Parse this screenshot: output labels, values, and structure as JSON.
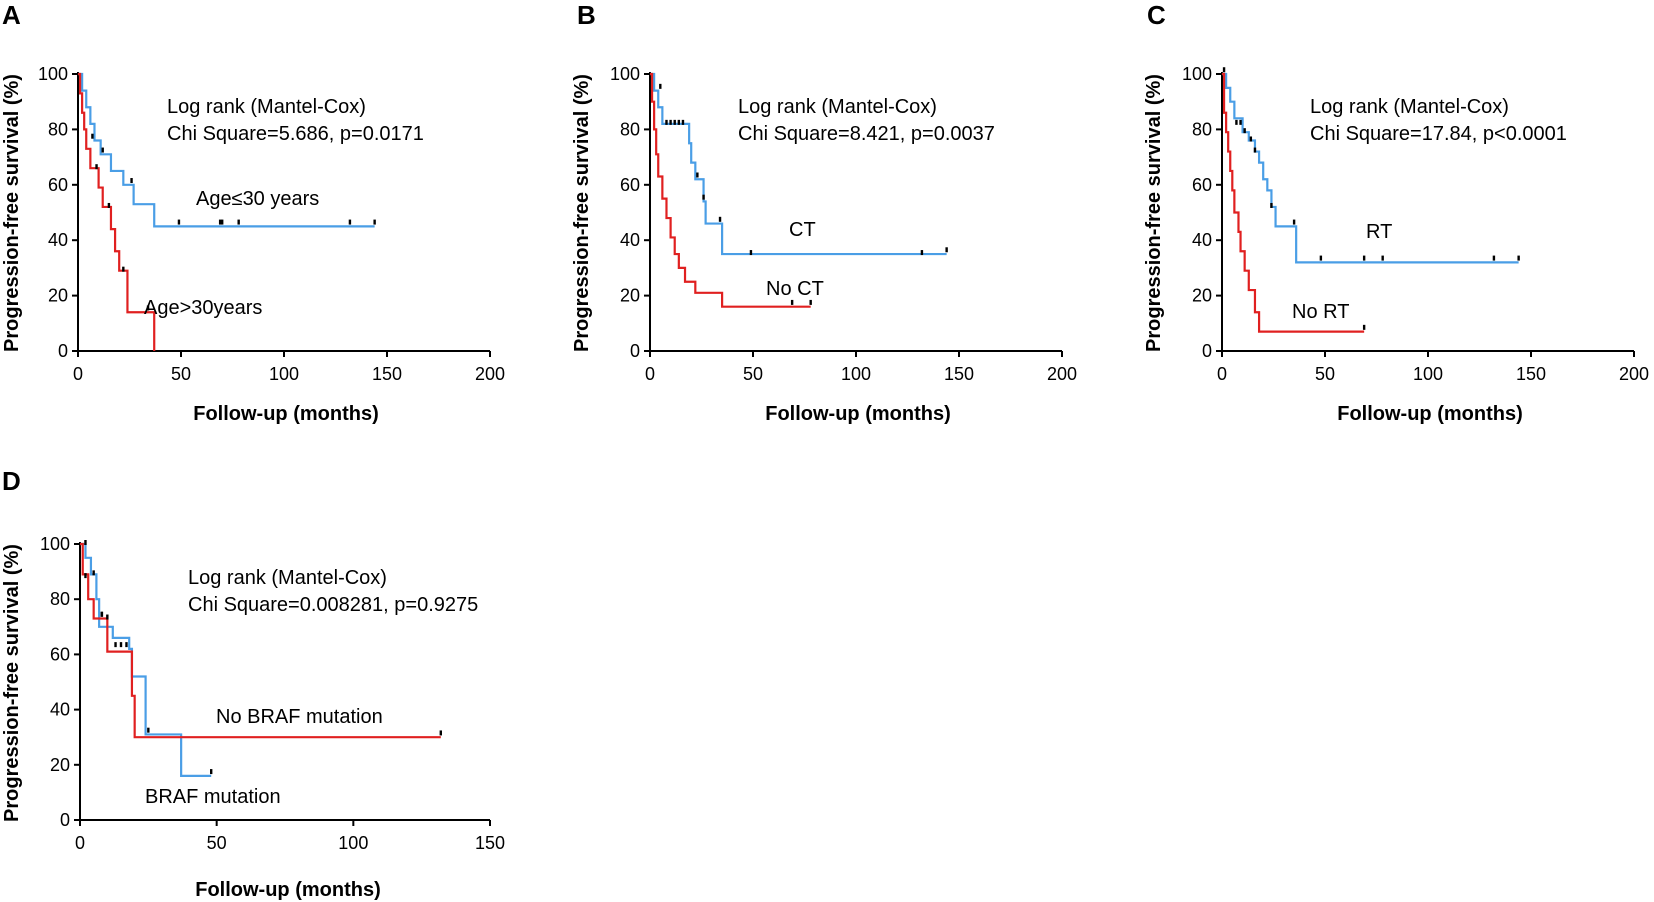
{
  "chart_data": [
    {
      "panel": "A",
      "type": "line",
      "subtype": "kaplan-meier",
      "xlabel": "Follow-up (months)",
      "ylabel": "Progression-free survival (%)",
      "xlim": [
        0,
        200
      ],
      "ylim": [
        0,
        100
      ],
      "xticks": [
        0,
        50,
        100,
        150,
        200
      ],
      "yticks": [
        0,
        20,
        40,
        60,
        80,
        100
      ],
      "stat_lines": [
        "Log rank (Mantel-Cox)",
        "Chi Square=5.686, p=0.0171"
      ],
      "series": [
        {
          "name": "Age≤30 years",
          "color": "#4a9ee6",
          "steps": [
            [
              0,
              100
            ],
            [
              2,
              94
            ],
            [
              4,
              88
            ],
            [
              6,
              82
            ],
            [
              8,
              76
            ],
            [
              11,
              71
            ],
            [
              16,
              65
            ],
            [
              22,
              60
            ],
            [
              27,
              53
            ],
            [
              37,
              45
            ],
            [
              144,
              45
            ]
          ],
          "censor": [
            [
              7,
              77
            ],
            [
              12,
              72
            ],
            [
              26,
              61
            ],
            [
              49,
              46
            ],
            [
              69,
              46
            ],
            [
              70,
              46
            ],
            [
              78,
              46
            ],
            [
              132,
              46
            ],
            [
              144,
              46
            ]
          ]
        },
        {
          "name": "Age>30years",
          "color": "#e02020",
          "steps": [
            [
              0,
              100
            ],
            [
              1,
              93
            ],
            [
              2,
              86
            ],
            [
              3,
              80
            ],
            [
              4,
              73
            ],
            [
              6,
              66
            ],
            [
              10,
              59
            ],
            [
              12,
              52
            ],
            [
              16,
              44
            ],
            [
              18,
              36
            ],
            [
              20,
              29
            ],
            [
              24,
              14
            ],
            [
              37,
              0
            ]
          ],
          "censor": [
            [
              9,
              66
            ],
            [
              15,
              52
            ],
            [
              22,
              29
            ],
            [
              34,
              15
            ]
          ]
        }
      ]
    },
    {
      "panel": "B",
      "type": "line",
      "subtype": "kaplan-meier",
      "xlabel": "Follow-up (months)",
      "ylabel": "Progression-free survival (%)",
      "xlim": [
        0,
        200
      ],
      "ylim": [
        0,
        100
      ],
      "xticks": [
        0,
        50,
        100,
        150,
        200
      ],
      "yticks": [
        0,
        20,
        40,
        60,
        80,
        100
      ],
      "stat_lines": [
        "Log rank (Mantel-Cox)",
        "Chi Square=8.421, p=0.0037"
      ],
      "series": [
        {
          "name": "CT",
          "color": "#4a9ee6",
          "steps": [
            [
              0,
              100
            ],
            [
              2,
              94
            ],
            [
              4,
              88
            ],
            [
              6,
              82
            ],
            [
              19,
              75
            ],
            [
              20,
              68
            ],
            [
              22,
              62
            ],
            [
              26,
              54
            ],
            [
              27,
              46
            ],
            [
              35,
              35
            ],
            [
              144,
              35
            ]
          ],
          "censor": [
            [
              5,
              95
            ],
            [
              8,
              82
            ],
            [
              10,
              82
            ],
            [
              12,
              82
            ],
            [
              14,
              82
            ],
            [
              16,
              82
            ],
            [
              23,
              63
            ],
            [
              26,
              55
            ],
            [
              34,
              47
            ],
            [
              49,
              35
            ],
            [
              132,
              35
            ],
            [
              144,
              36
            ]
          ]
        },
        {
          "name": "No CT",
          "color": "#e02020",
          "steps": [
            [
              0,
              100
            ],
            [
              1,
              90
            ],
            [
              2,
              80
            ],
            [
              3,
              71
            ],
            [
              4,
              63
            ],
            [
              6,
              55
            ],
            [
              8,
              48
            ],
            [
              10,
              41
            ],
            [
              12,
              35
            ],
            [
              14,
              30
            ],
            [
              17,
              25
            ],
            [
              22,
              21
            ],
            [
              35,
              16
            ],
            [
              78,
              16
            ]
          ],
          "censor": [
            [
              69,
              17
            ],
            [
              78,
              17
            ]
          ]
        }
      ]
    },
    {
      "panel": "C",
      "type": "line",
      "subtype": "kaplan-meier",
      "xlabel": "Follow-up (months)",
      "ylabel": "Progression-free survival (%)",
      "xlim": [
        0,
        200
      ],
      "ylim": [
        0,
        100
      ],
      "xticks": [
        0,
        50,
        100,
        150,
        200
      ],
      "yticks": [
        0,
        20,
        40,
        60,
        80,
        100
      ],
      "stat_lines": [
        "Log rank (Mantel-Cox)",
        "Chi Square=17.84, p<0.0001"
      ],
      "series": [
        {
          "name": "RT",
          "color": "#4a9ee6",
          "steps": [
            [
              0,
              100
            ],
            [
              2,
              95
            ],
            [
              4,
              90
            ],
            [
              6,
              84
            ],
            [
              10,
              79
            ],
            [
              13,
              76
            ],
            [
              16,
              72
            ],
            [
              18,
              68
            ],
            [
              20,
              62
            ],
            [
              22,
              58
            ],
            [
              24,
              52
            ],
            [
              26,
              45
            ],
            [
              36,
              32
            ],
            [
              144,
              32
            ]
          ],
          "censor": [
            [
              1,
              101
            ],
            [
              7,
              82
            ],
            [
              9,
              82
            ],
            [
              11,
              79
            ],
            [
              14,
              76
            ],
            [
              16,
              72
            ],
            [
              24,
              52
            ],
            [
              35,
              46
            ],
            [
              48,
              33
            ],
            [
              69,
              33
            ],
            [
              78,
              33
            ],
            [
              132,
              33
            ],
            [
              144,
              33
            ]
          ]
        },
        {
          "name": "No RT",
          "color": "#e02020",
          "steps": [
            [
              0,
              100
            ],
            [
              1,
              86
            ],
            [
              2,
              79
            ],
            [
              3,
              72
            ],
            [
              4,
              65
            ],
            [
              5,
              58
            ],
            [
              6,
              50
            ],
            [
              8,
              43
            ],
            [
              9,
              36
            ],
            [
              11,
              29
            ],
            [
              13,
              22
            ],
            [
              16,
              14
            ],
            [
              18,
              7
            ],
            [
              69,
              7
            ]
          ],
          "censor": [
            [
              69,
              8
            ]
          ]
        }
      ]
    },
    {
      "panel": "D",
      "type": "line",
      "subtype": "kaplan-meier",
      "xlabel": "Follow-up (months)",
      "ylabel": "Progression-free survival (%)",
      "xlim": [
        0,
        150
      ],
      "ylim": [
        0,
        100
      ],
      "xticks": [
        0,
        50,
        100,
        150
      ],
      "yticks": [
        0,
        20,
        40,
        60,
        80,
        100
      ],
      "stat_lines": [
        "Log rank (Mantel-Cox)",
        "Chi Square=0.008281, p=0.9275"
      ],
      "series": [
        {
          "name": "BRAF mutation",
          "color": "#4a9ee6",
          "steps": [
            [
              0,
              100
            ],
            [
              2,
              95
            ],
            [
              4,
              89
            ],
            [
              6,
              80
            ],
            [
              7,
              70
            ],
            [
              12,
              66
            ],
            [
              18,
              62
            ],
            [
              19,
              52
            ],
            [
              24,
              31
            ],
            [
              37,
              16
            ],
            [
              48,
              16
            ]
          ],
          "censor": [
            [
              2,
              100
            ],
            [
              5,
              89
            ],
            [
              8,
              74
            ],
            [
              13,
              63
            ],
            [
              15,
              63
            ],
            [
              17,
              63
            ],
            [
              25,
              32
            ],
            [
              48,
              17
            ]
          ]
        },
        {
          "name": "No BRAF mutation",
          "color": "#e02020",
          "steps": [
            [
              0,
              100
            ],
            [
              1,
              89
            ],
            [
              3,
              80
            ],
            [
              5,
              73
            ],
            [
              10,
              61
            ],
            [
              19,
              45
            ],
            [
              20,
              30
            ],
            [
              132,
              30
            ]
          ],
          "censor": [
            [
              2,
              88
            ],
            [
              8,
              74
            ],
            [
              10,
              73
            ],
            [
              132,
              31
            ]
          ]
        }
      ]
    }
  ]
}
